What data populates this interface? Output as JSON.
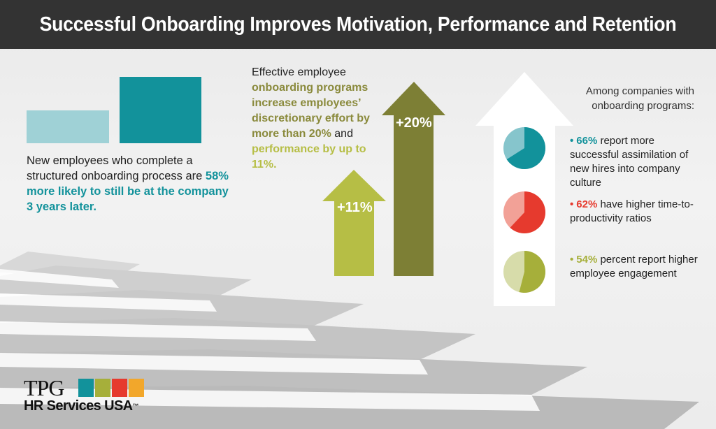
{
  "header": {
    "title": "Successful Onboarding Improves Motivation, Performance and Retention"
  },
  "left": {
    "text_plain": "New employees who complete a structured onboarding process are",
    "text_highlight": "58% more likely to still be at the company 3 years later."
  },
  "middle": {
    "line1": "Effective employee",
    "highlight1": "onboarding programs increase employees’ discretionary effort by more than 20%",
    "and": "and",
    "highlight2": "performance by up to 11%.",
    "arrow_small_label": "+11%",
    "arrow_big_label": "+20%"
  },
  "right": {
    "heading": "Among companies with onboarding programs:",
    "stats": [
      {
        "pct": "66%",
        "text": "report more successful assimilation of new hires into company culture",
        "value": 66,
        "color": "#12929b",
        "light": "#86c5cc"
      },
      {
        "pct": "62%",
        "text": "have higher time-to-productivity ratios",
        "value": 62,
        "color": "#e63a2e",
        "light": "#f2a197"
      },
      {
        "pct": "54%",
        "text": "percent report higher employee engagement",
        "value": 54,
        "color": "#a6af3a",
        "light": "#d7dcaa"
      }
    ]
  },
  "logo": {
    "tpg": "TPG",
    "sub": "HR Services USA",
    "tm": "™",
    "square_colors": [
      "#12929b",
      "#a6af3a",
      "#e63a2e",
      "#f2a72b"
    ]
  },
  "colors": {
    "teal": "#12929b",
    "teal_light": "#9fd1d6",
    "olive": "#7d7f35",
    "lime": "#b6be45",
    "red": "#e63a2e",
    "header_bg": "#333333"
  }
}
